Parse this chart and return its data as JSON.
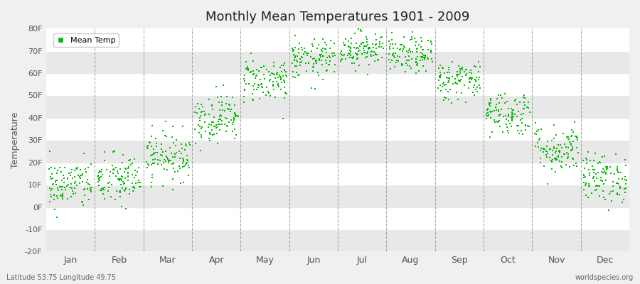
{
  "title": "Monthly Mean Temperatures 1901 - 2009",
  "ylabel": "Temperature",
  "xlabel_bottom_left": "Latitude 53.75 Longitude 49.75",
  "xlabel_bottom_right": "worldspecies.org",
  "legend_label": "Mean Temp",
  "dot_color": "#00BB00",
  "dot_size": 4,
  "bg_color": "#F0F0F0",
  "plot_bg_light": "#FFFFFF",
  "plot_bg_dark": "#E8E8E8",
  "dashed_color": "#888888",
  "ylim": [
    -20,
    80
  ],
  "yticks": [
    -20,
    -10,
    0,
    10,
    20,
    30,
    40,
    50,
    60,
    70,
    80
  ],
  "ytick_labels": [
    "-20F",
    "-10F",
    "0F",
    "10F",
    "20F",
    "30F",
    "40F",
    "50F",
    "60F",
    "70F",
    "80F"
  ],
  "months": [
    "Jan",
    "Feb",
    "Mar",
    "Apr",
    "May",
    "Jun",
    "Jul",
    "Aug",
    "Sep",
    "Oct",
    "Nov",
    "Dec"
  ],
  "month_centers": [
    0.5,
    1.5,
    2.5,
    3.5,
    4.5,
    5.5,
    6.5,
    7.5,
    8.5,
    9.5,
    10.5,
    11.5
  ],
  "month_dividers": [
    1.0,
    2.0,
    3.0,
    4.0,
    5.0,
    6.0,
    7.0,
    8.0,
    9.0,
    10.0,
    11.0
  ],
  "xlim": [
    0,
    12
  ],
  "n_years": 109,
  "mean_temps_f": [
    10.0,
    12.0,
    23.0,
    40.0,
    57.0,
    66.0,
    71.0,
    68.0,
    57.0,
    42.0,
    26.0,
    13.0
  ],
  "monthly_stds": [
    5.5,
    6.0,
    5.5,
    5.5,
    5.0,
    4.5,
    4.0,
    4.0,
    4.5,
    5.0,
    5.5,
    5.5
  ]
}
